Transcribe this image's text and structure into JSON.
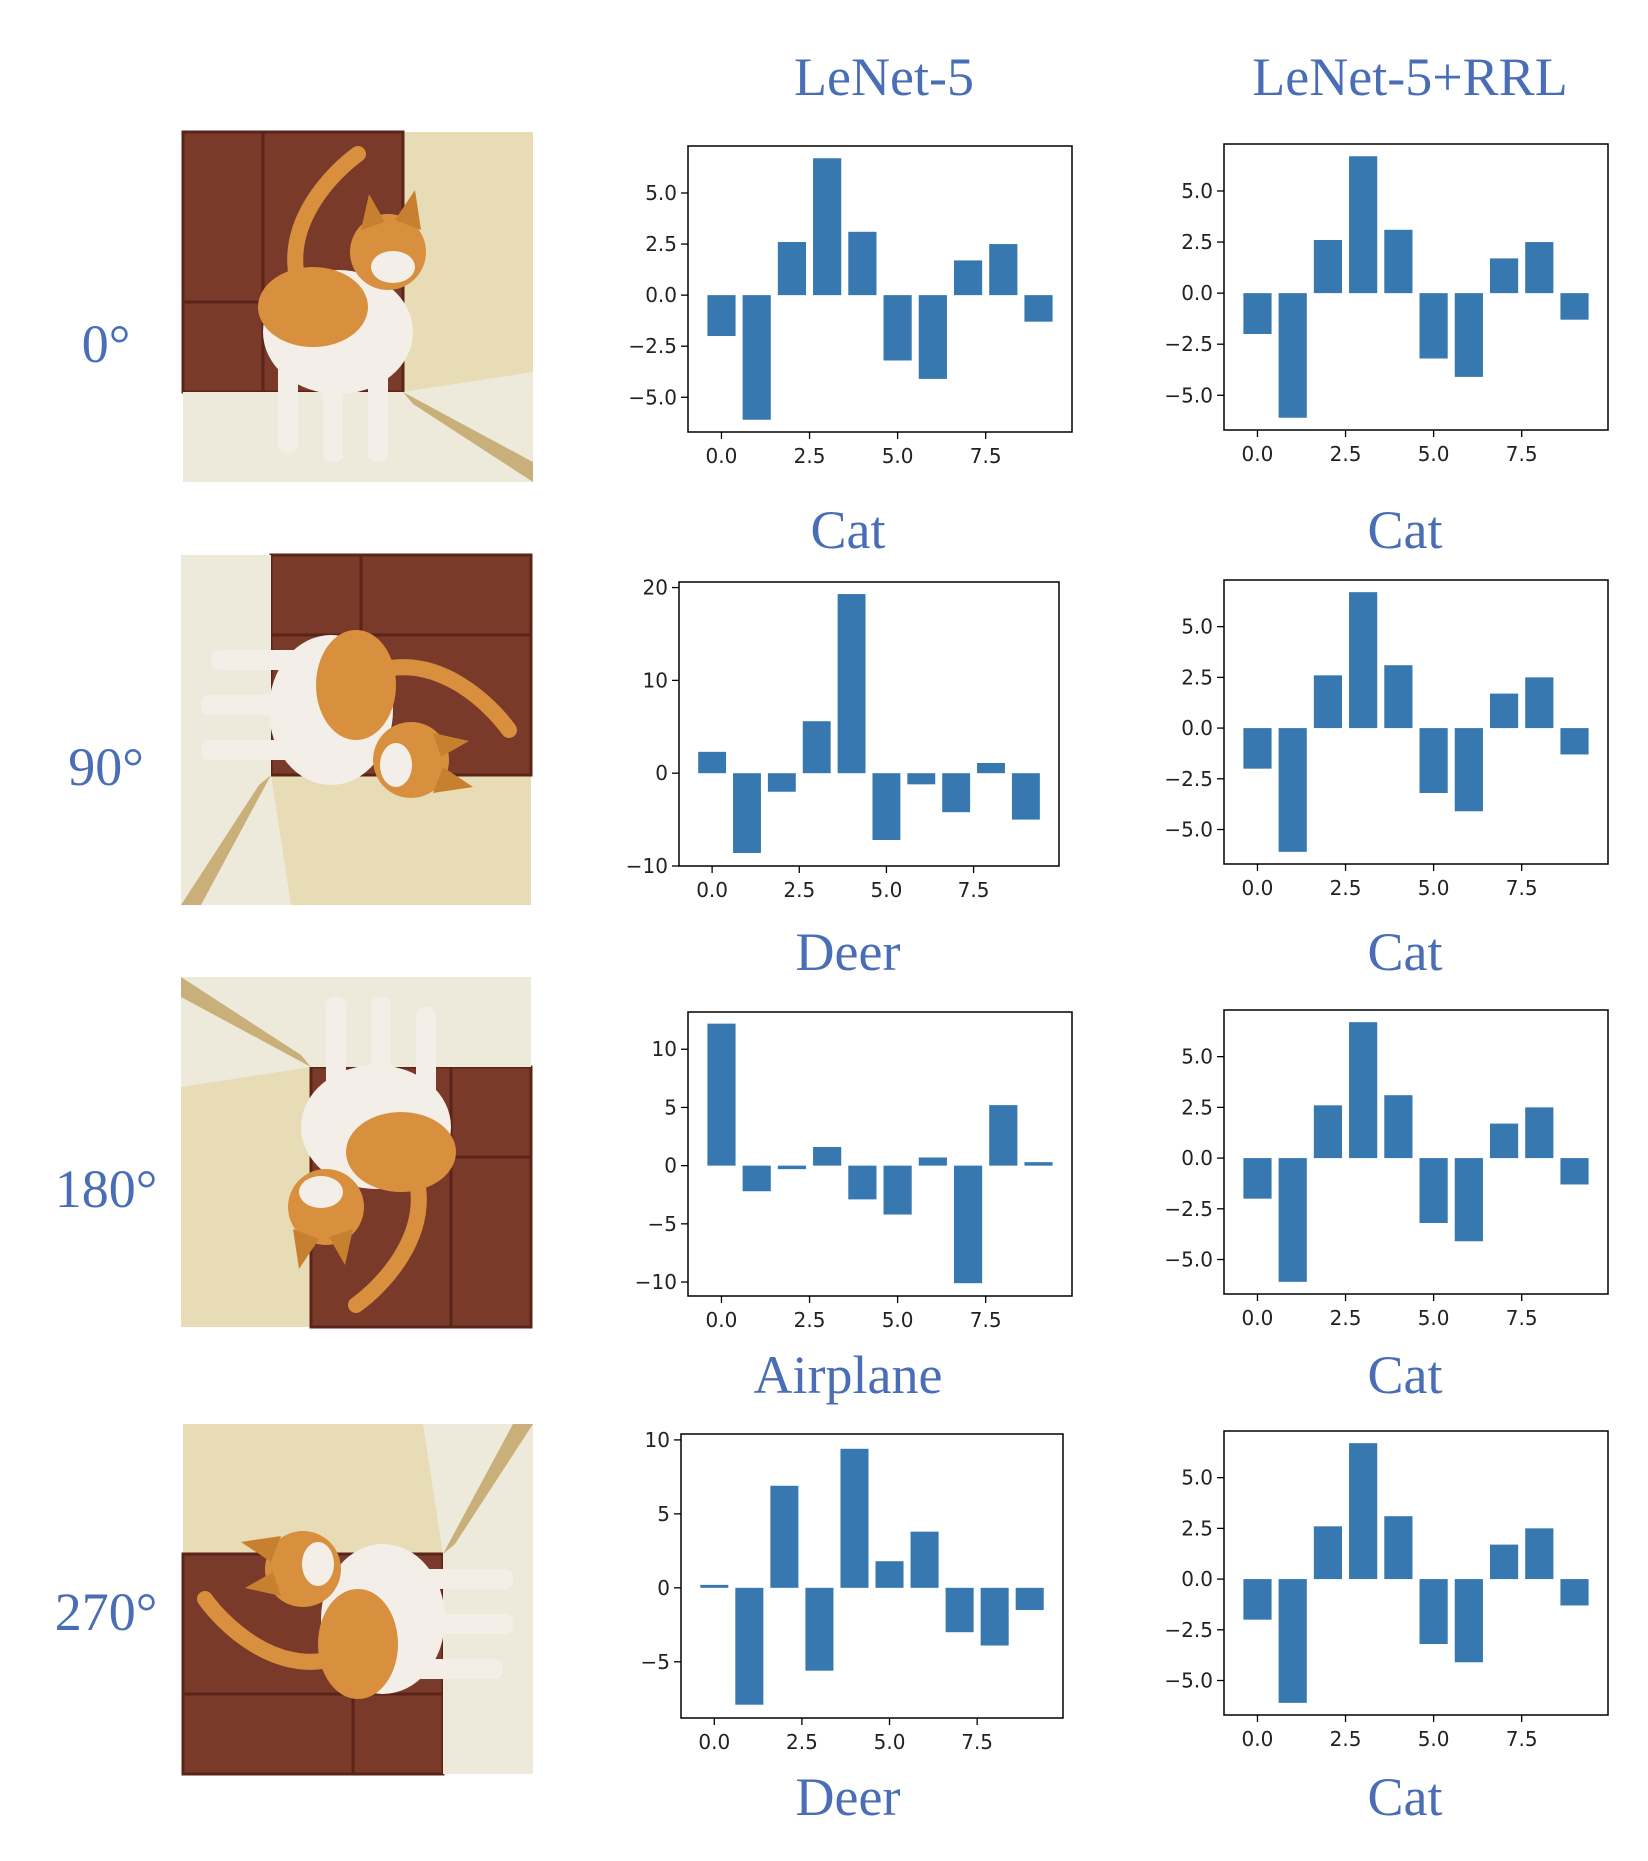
{
  "header": {
    "col1": "LeNet-5",
    "col2": "LeNet-5+RRL"
  },
  "rows": [
    {
      "angle_label": "0°",
      "rotation_deg": 0,
      "left_prediction": "Cat",
      "right_prediction": "Cat"
    },
    {
      "angle_label": "90°",
      "rotation_deg": 90,
      "left_prediction": "Deer",
      "right_prediction": "Cat"
    },
    {
      "angle_label": "180°",
      "rotation_deg": 180,
      "left_prediction": "Airplane",
      "right_prediction": "Cat"
    },
    {
      "angle_label": "270°",
      "rotation_deg": 270,
      "left_prediction": "Deer",
      "right_prediction": "Cat"
    }
  ],
  "colors": {
    "bar": "#3778b0",
    "label": "#4a6eb5",
    "axis": "#000000",
    "tick_text": "#222222"
  },
  "chart_data": [
    {
      "type": "bar",
      "id": "r0-lenet",
      "x": [
        0,
        1,
        2,
        3,
        4,
        5,
        6,
        7,
        8,
        9
      ],
      "values": [
        -2.0,
        -6.1,
        2.6,
        6.7,
        3.1,
        -3.2,
        -4.1,
        1.7,
        2.5,
        -1.3
      ],
      "ylim": [
        -6.7,
        7.3
      ],
      "xlim": [
        -0.95,
        9.95
      ],
      "yticks": [
        -5.0,
        -2.5,
        0.0,
        2.5,
        5.0
      ],
      "ytick_labels": [
        "−5.0",
        "−2.5",
        "0.0",
        "2.5",
        "5.0"
      ],
      "xticks": [
        0.0,
        2.5,
        5.0,
        7.5
      ],
      "xtick_labels": [
        "0.0",
        "2.5",
        "5.0",
        "7.5"
      ]
    },
    {
      "type": "bar",
      "id": "r0-rrl",
      "x": [
        0,
        1,
        2,
        3,
        4,
        5,
        6,
        7,
        8,
        9
      ],
      "values": [
        -2.0,
        -6.1,
        2.6,
        6.7,
        3.1,
        -3.2,
        -4.1,
        1.7,
        2.5,
        -1.3
      ],
      "ylim": [
        -6.7,
        7.3
      ],
      "xlim": [
        -0.95,
        9.95
      ],
      "yticks": [
        -5.0,
        -2.5,
        0.0,
        2.5,
        5.0
      ],
      "ytick_labels": [
        "−5.0",
        "−2.5",
        "0.0",
        "2.5",
        "5.0"
      ],
      "xticks": [
        0.0,
        2.5,
        5.0,
        7.5
      ],
      "xtick_labels": [
        "0.0",
        "2.5",
        "5.0",
        "7.5"
      ]
    },
    {
      "type": "bar",
      "id": "r1-lenet",
      "x": [
        0,
        1,
        2,
        3,
        4,
        5,
        6,
        7,
        8,
        9
      ],
      "values": [
        2.3,
        -8.6,
        -2.0,
        5.6,
        19.3,
        -7.2,
        -1.2,
        -4.2,
        1.1,
        -5.0
      ],
      "ylim": [
        -10.0,
        20.6
      ],
      "xlim": [
        -0.95,
        9.95
      ],
      "yticks": [
        -10,
        0,
        10,
        20
      ],
      "ytick_labels": [
        "−10",
        "0",
        "10",
        "20"
      ],
      "xticks": [
        0.0,
        2.5,
        5.0,
        7.5
      ],
      "xtick_labels": [
        "0.0",
        "2.5",
        "5.0",
        "7.5"
      ]
    },
    {
      "type": "bar",
      "id": "r1-rrl",
      "x": [
        0,
        1,
        2,
        3,
        4,
        5,
        6,
        7,
        8,
        9
      ],
      "values": [
        -2.0,
        -6.1,
        2.6,
        6.7,
        3.1,
        -3.2,
        -4.1,
        1.7,
        2.5,
        -1.3
      ],
      "ylim": [
        -6.7,
        7.3
      ],
      "xlim": [
        -0.95,
        9.95
      ],
      "yticks": [
        -5.0,
        -2.5,
        0.0,
        2.5,
        5.0
      ],
      "ytick_labels": [
        "−5.0",
        "−2.5",
        "0.0",
        "2.5",
        "5.0"
      ],
      "xticks": [
        0.0,
        2.5,
        5.0,
        7.5
      ],
      "xtick_labels": [
        "0.0",
        "2.5",
        "5.0",
        "7.5"
      ]
    },
    {
      "type": "bar",
      "id": "r2-lenet",
      "x": [
        0,
        1,
        2,
        3,
        4,
        5,
        6,
        7,
        8,
        9
      ],
      "values": [
        12.2,
        -2.2,
        -0.3,
        1.6,
        -2.9,
        -4.2,
        0.7,
        -10.1,
        5.2,
        0.3
      ],
      "ylim": [
        -11.2,
        13.2
      ],
      "xlim": [
        -0.95,
        9.95
      ],
      "yticks": [
        -10,
        -5,
        0,
        5,
        10
      ],
      "ytick_labels": [
        "−10",
        "−5",
        "0",
        "5",
        "10"
      ],
      "xticks": [
        0.0,
        2.5,
        5.0,
        7.5
      ],
      "xtick_labels": [
        "0.0",
        "2.5",
        "5.0",
        "7.5"
      ]
    },
    {
      "type": "bar",
      "id": "r2-rrl",
      "x": [
        0,
        1,
        2,
        3,
        4,
        5,
        6,
        7,
        8,
        9
      ],
      "values": [
        -2.0,
        -6.1,
        2.6,
        6.7,
        3.1,
        -3.2,
        -4.1,
        1.7,
        2.5,
        -1.3
      ],
      "ylim": [
        -6.7,
        7.3
      ],
      "xlim": [
        -0.95,
        9.95
      ],
      "yticks": [
        -5.0,
        -2.5,
        0.0,
        2.5,
        5.0
      ],
      "ytick_labels": [
        "−5.0",
        "−2.5",
        "0.0",
        "2.5",
        "5.0"
      ],
      "xticks": [
        0.0,
        2.5,
        5.0,
        7.5
      ],
      "xtick_labels": [
        "0.0",
        "2.5",
        "5.0",
        "7.5"
      ]
    },
    {
      "type": "bar",
      "id": "r3-lenet",
      "x": [
        0,
        1,
        2,
        3,
        4,
        5,
        6,
        7,
        8,
        9
      ],
      "values": [
        0.2,
        -7.9,
        6.9,
        -5.6,
        9.4,
        1.8,
        3.8,
        -3.0,
        -3.9,
        -1.5
      ],
      "ylim": [
        -8.8,
        10.4
      ],
      "xlim": [
        -0.95,
        9.95
      ],
      "yticks": [
        -5,
        0,
        5,
        10
      ],
      "ytick_labels": [
        "−5",
        "0",
        "5",
        "10"
      ],
      "xticks": [
        0.0,
        2.5,
        5.0,
        7.5
      ],
      "xtick_labels": [
        "0.0",
        "2.5",
        "5.0",
        "7.5"
      ]
    },
    {
      "type": "bar",
      "id": "r3-rrl",
      "x": [
        0,
        1,
        2,
        3,
        4,
        5,
        6,
        7,
        8,
        9
      ],
      "values": [
        -2.0,
        -6.1,
        2.6,
        6.7,
        3.1,
        -3.2,
        -4.1,
        1.7,
        2.5,
        -1.3
      ],
      "ylim": [
        -6.7,
        7.3
      ],
      "xlim": [
        -0.95,
        9.95
      ],
      "yticks": [
        -5.0,
        -2.5,
        0.0,
        2.5,
        5.0
      ],
      "ytick_labels": [
        "−5.0",
        "−2.5",
        "0.0",
        "2.5",
        "5.0"
      ],
      "xticks": [
        0.0,
        2.5,
        5.0,
        7.5
      ],
      "xtick_labels": [
        "0.0",
        "2.5",
        "5.0",
        "7.5"
      ]
    }
  ]
}
